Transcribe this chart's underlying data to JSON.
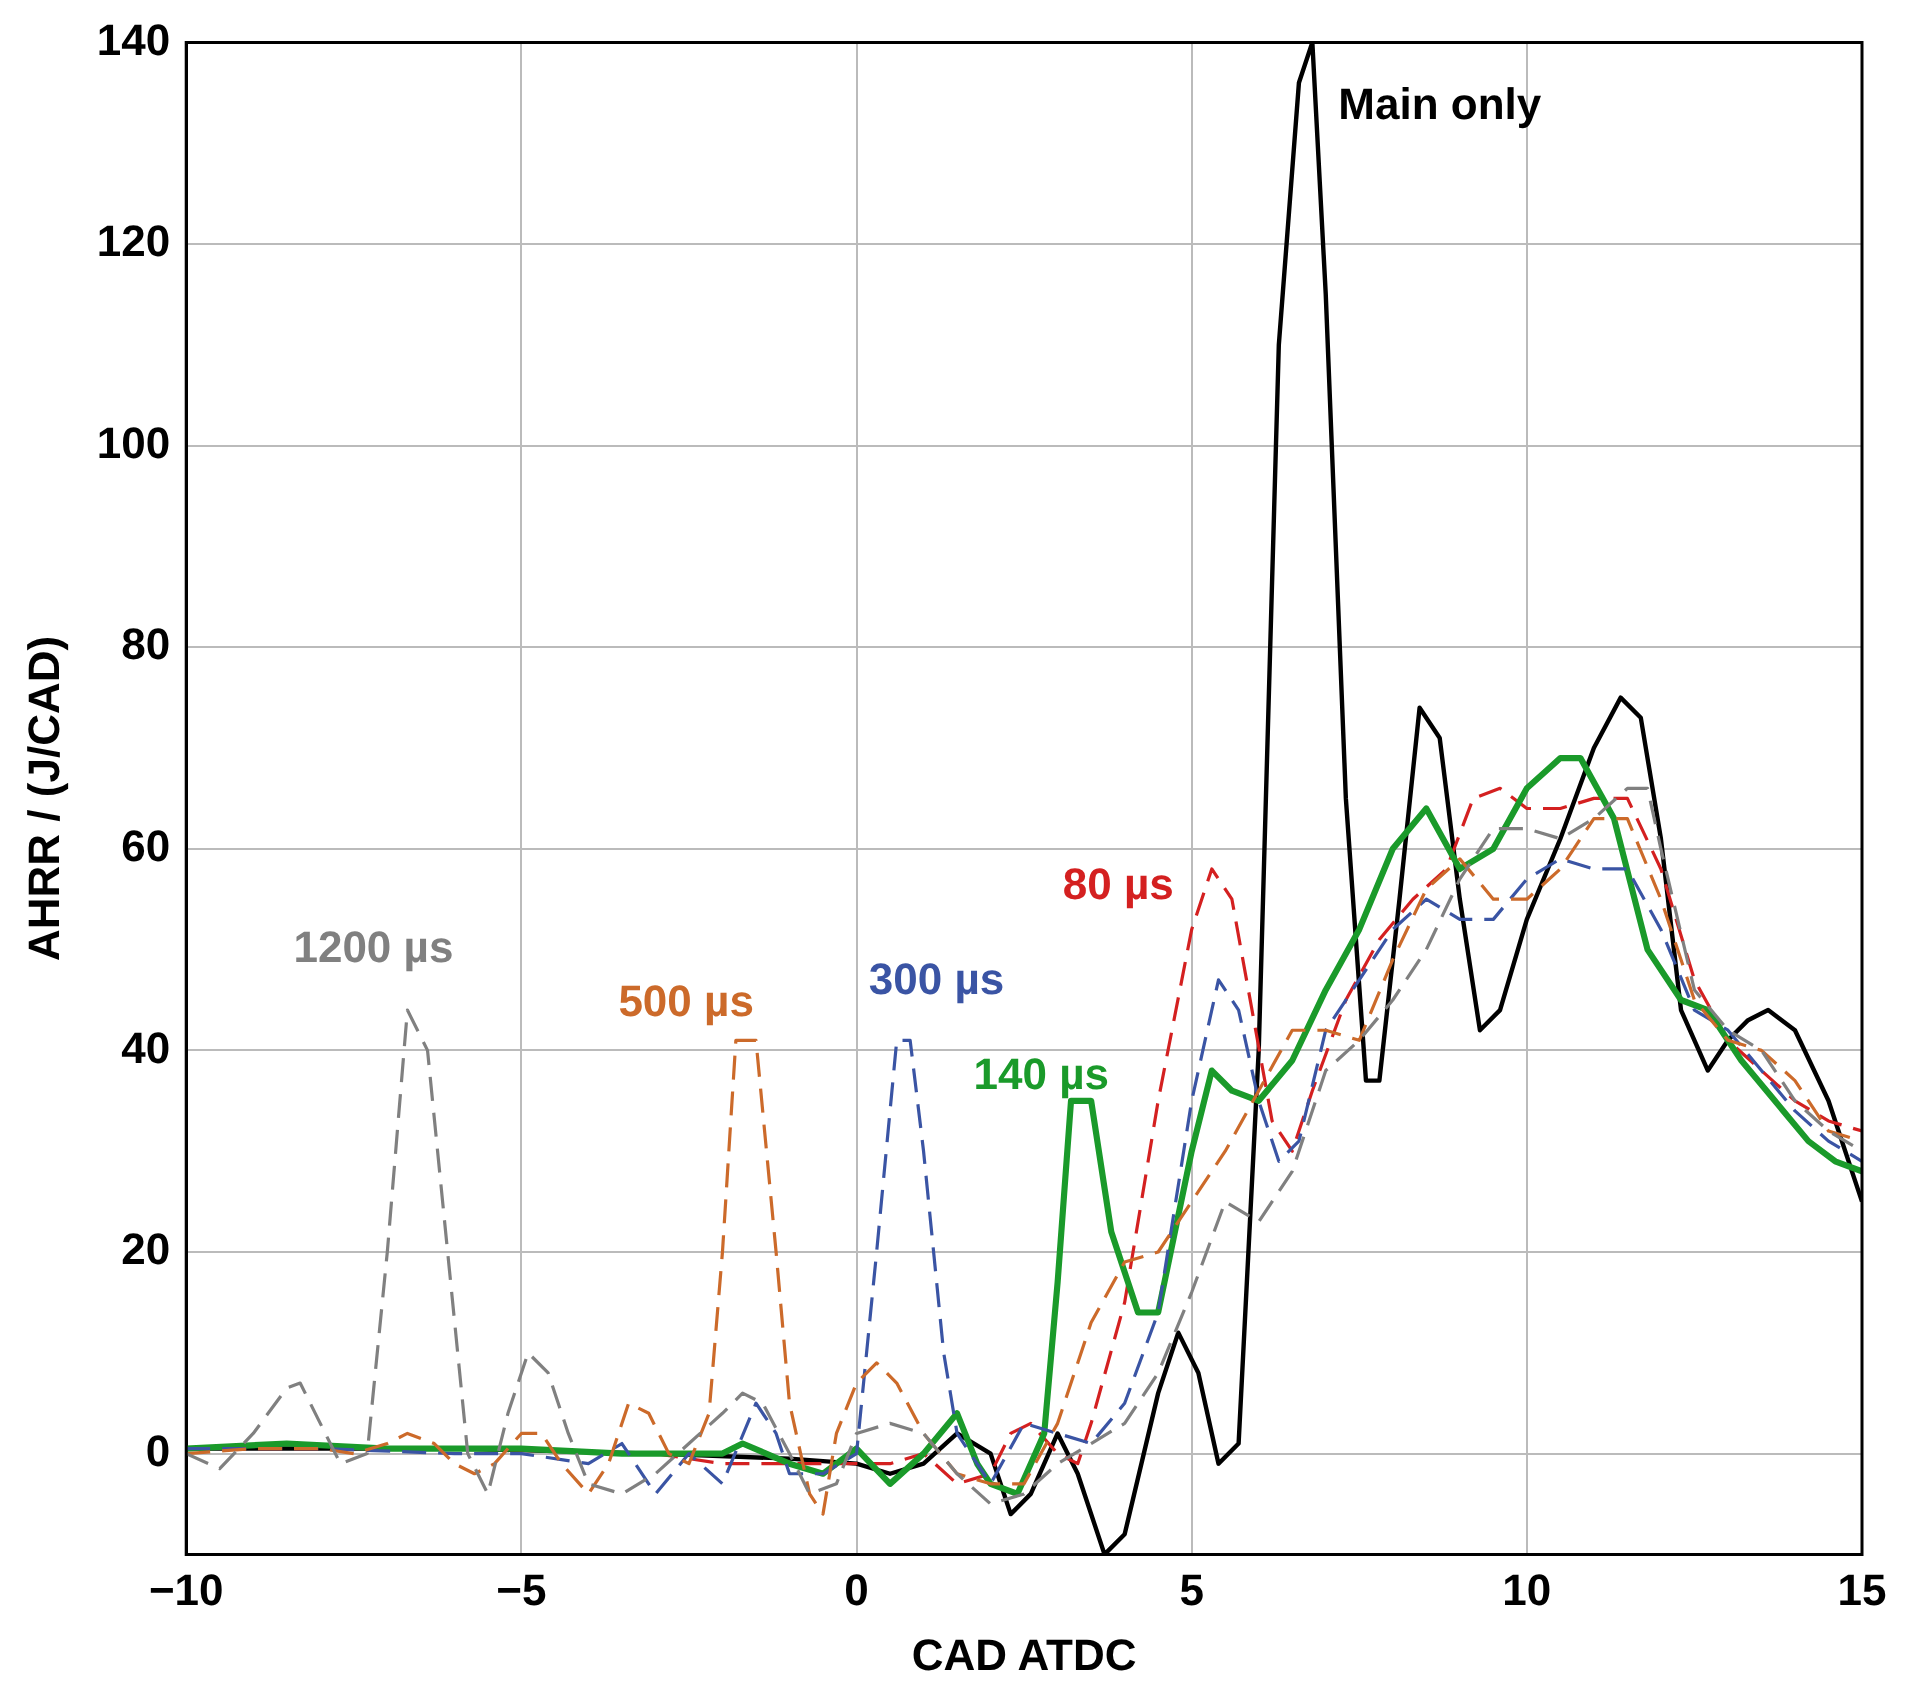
{
  "chart_data": {
    "type": "line",
    "xlabel": "CAD ATDC",
    "ylabel": "AHRR / (J/CAD)",
    "xlim": [
      -10,
      15
    ],
    "ylim": [
      -10,
      140
    ],
    "xticks": [
      -10,
      -5,
      0,
      5,
      10,
      15
    ],
    "yticks": [
      0,
      20,
      40,
      60,
      80,
      100,
      120,
      140
    ],
    "grid": true,
    "legend": false,
    "marker": "none",
    "series": [
      {
        "name": "1200 µs",
        "color": "#808080",
        "line_style": "dashed",
        "x": [
          -10,
          -9.5,
          -9,
          -8.5,
          -8.3,
          -8,
          -7.7,
          -7.3,
          -7,
          -6.7,
          -6.4,
          -6.1,
          -5.8,
          -5.5,
          -5.2,
          -4.9,
          -4.6,
          -4.3,
          -4,
          -3.5,
          -3,
          -2.5,
          -2,
          -1.7,
          -1.4,
          -1,
          -0.7,
          -0.3,
          0,
          0.5,
          1,
          1.5,
          2,
          2.5,
          3,
          3.5,
          4,
          4.5,
          5,
          5.5,
          6,
          6.5,
          7,
          7.5,
          8,
          8.5,
          9,
          9.5,
          10,
          10.5,
          11,
          11.5,
          11.8,
          12,
          12.5,
          13,
          13.5,
          14,
          14.5,
          15
        ],
        "values": [
          0,
          -1.5,
          2,
          6.5,
          7,
          3,
          -1,
          0,
          20,
          44,
          40,
          20,
          0,
          -4,
          4,
          10,
          8,
          2,
          -3,
          -4,
          -2,
          1,
          4,
          6,
          5,
          0,
          -4,
          -3,
          2,
          3,
          2,
          -2,
          -5,
          -4,
          -1,
          1,
          3,
          8,
          16,
          25,
          23,
          28,
          38,
          41,
          45,
          50,
          57,
          62,
          62,
          61,
          63,
          66,
          66,
          60,
          46,
          42,
          40,
          35,
          32,
          30
        ]
      },
      {
        "name": "500 µs",
        "color": "#cc6a2a",
        "line_style": "dashed",
        "x": [
          -10,
          -9,
          -8,
          -7.5,
          -7,
          -6.7,
          -6.3,
          -6,
          -5.7,
          -5.4,
          -5,
          -4.7,
          -4.4,
          -4,
          -3.7,
          -3.4,
          -3.1,
          -2.8,
          -2.5,
          -2.2,
          -2,
          -1.8,
          -1.5,
          -1.2,
          -1,
          -0.7,
          -0.5,
          -0.3,
          0,
          0.3,
          0.6,
          1,
          1.5,
          2,
          2.5,
          3,
          3.5,
          4,
          4.5,
          5,
          5.5,
          6,
          6.5,
          7,
          7.5,
          8,
          8.5,
          9,
          9.5,
          10,
          10.5,
          11,
          11.5,
          12,
          12.5,
          13,
          13.5,
          14,
          14.5,
          15
        ],
        "values": [
          0,
          0.5,
          0.5,
          0,
          1,
          2,
          1,
          -1,
          -2,
          -1,
          2,
          2,
          -1,
          -4,
          -1,
          5,
          4,
          0,
          -1,
          4,
          20,
          41,
          41,
          20,
          5,
          -4,
          -6,
          2,
          7,
          9,
          7,
          2,
          -2,
          -3,
          -3,
          3,
          13,
          19,
          20,
          25,
          30,
          36,
          42,
          42,
          41,
          49,
          56,
          59,
          55,
          55,
          58,
          63,
          63,
          55,
          45,
          41,
          40,
          37,
          32,
          31
        ]
      },
      {
        "name": "300 µs",
        "color": "#3a54a4",
        "line_style": "dashed",
        "x": [
          -10,
          -8,
          -6,
          -5,
          -4,
          -3.5,
          -3,
          -2.5,
          -2,
          -1.5,
          -1.2,
          -1,
          -0.5,
          0,
          0.3,
          0.6,
          0.8,
          1,
          1.3,
          1.5,
          2,
          2.5,
          3,
          3.5,
          4,
          4.5,
          5,
          5.4,
          5.7,
          6,
          6.3,
          6.6,
          7,
          7.5,
          8,
          8.5,
          9,
          9.5,
          10,
          10.5,
          11,
          11.5,
          12,
          12.5,
          13,
          13.5,
          14,
          14.5,
          15
        ],
        "values": [
          0.5,
          0.5,
          0,
          0,
          -1,
          1,
          -4,
          0,
          -3,
          5,
          2,
          -2,
          -2,
          0,
          20,
          41,
          41,
          30,
          10,
          2,
          -3,
          3,
          2,
          1,
          5,
          14,
          35,
          47,
          44,
          35,
          29,
          31,
          42,
          47,
          52,
          55,
          53,
          53,
          57,
          59,
          58,
          58,
          52,
          44,
          42,
          38,
          34,
          31,
          29
        ]
      },
      {
        "name": "140 µs",
        "color": "#1a9a2a",
        "line_style": "solid",
        "x": [
          -10,
          -8.5,
          -7,
          -5,
          -3.5,
          -2,
          -1.7,
          -1,
          -0.5,
          0,
          0.5,
          1,
          1.5,
          1.8,
          2,
          2.4,
          2.8,
          3,
          3.2,
          3.5,
          3.8,
          4.2,
          4.5,
          5,
          5.3,
          5.6,
          6,
          6.5,
          7,
          7.5,
          8,
          8.5,
          9,
          9.5,
          10,
          10.5,
          10.8,
          11.3,
          11.8,
          12.3,
          12.7,
          13.2,
          13.7,
          14.2,
          14.6,
          15
        ],
        "values": [
          0.5,
          1,
          0.5,
          0.5,
          0,
          0,
          1,
          -1,
          -2,
          0.5,
          -3,
          0,
          4,
          -1,
          -3,
          -4,
          2,
          17,
          35,
          35,
          22,
          14,
          14,
          30,
          38,
          36,
          35,
          39,
          46,
          52,
          60,
          64,
          58,
          60,
          66,
          69,
          69,
          63,
          50,
          45,
          44,
          39,
          35,
          31,
          29,
          28
        ]
      },
      {
        "name": "80 µs",
        "color": "#d42020",
        "line_style": "dashed",
        "x": [
          -10,
          -6,
          -3,
          -2,
          -1,
          0,
          0.5,
          1,
          1.5,
          2,
          2.3,
          2.6,
          3,
          3.3,
          3.5,
          4,
          4.5,
          5,
          5.3,
          5.6,
          5.9,
          6.2,
          6.5,
          6.8,
          7.3,
          7.8,
          8.3,
          8.8,
          9.2,
          9.6,
          10,
          10.5,
          11,
          11.5,
          12,
          12.5,
          13,
          13.5,
          14,
          14.5,
          15
        ],
        "values": [
          0.5,
          0.5,
          0,
          -1,
          -1,
          -1,
          -1,
          0,
          -3,
          -2,
          2,
          3,
          0,
          -1,
          3,
          15,
          35,
          52,
          58,
          55,
          44,
          33,
          30,
          36,
          45,
          51,
          55,
          58,
          65,
          66,
          64,
          64,
          65,
          65,
          58,
          47,
          41,
          38,
          35,
          33,
          32
        ]
      },
      {
        "name": "Main only",
        "color": "#000000",
        "line_style": "solid",
        "x": [
          -10,
          -6,
          -3,
          -1,
          0,
          0.5,
          1,
          1.5,
          2,
          2.3,
          2.6,
          3,
          3.3,
          3.7,
          4,
          4.5,
          4.8,
          5.1,
          5.4,
          5.7,
          6,
          6.3,
          6.6,
          6.8,
          7,
          7.3,
          7.6,
          7.8,
          8.1,
          8.4,
          8.7,
          9,
          9.3,
          9.6,
          10,
          10.5,
          11,
          11.4,
          11.7,
          12,
          12.3,
          12.7,
          13,
          13.3,
          13.6,
          14,
          14.5,
          15
        ],
        "values": [
          0.5,
          0.5,
          0,
          -0.5,
          -1,
          -2,
          -1,
          2,
          0,
          -6,
          -4,
          2,
          -2,
          -10,
          -8,
          6,
          12,
          8,
          -1,
          1,
          40,
          110,
          136,
          140,
          115,
          65,
          37,
          37,
          55,
          74,
          71,
          55,
          42,
          44,
          53,
          61,
          70,
          75,
          73,
          61,
          44,
          38,
          41,
          43,
          44,
          42,
          35,
          25
        ]
      }
    ]
  }
}
